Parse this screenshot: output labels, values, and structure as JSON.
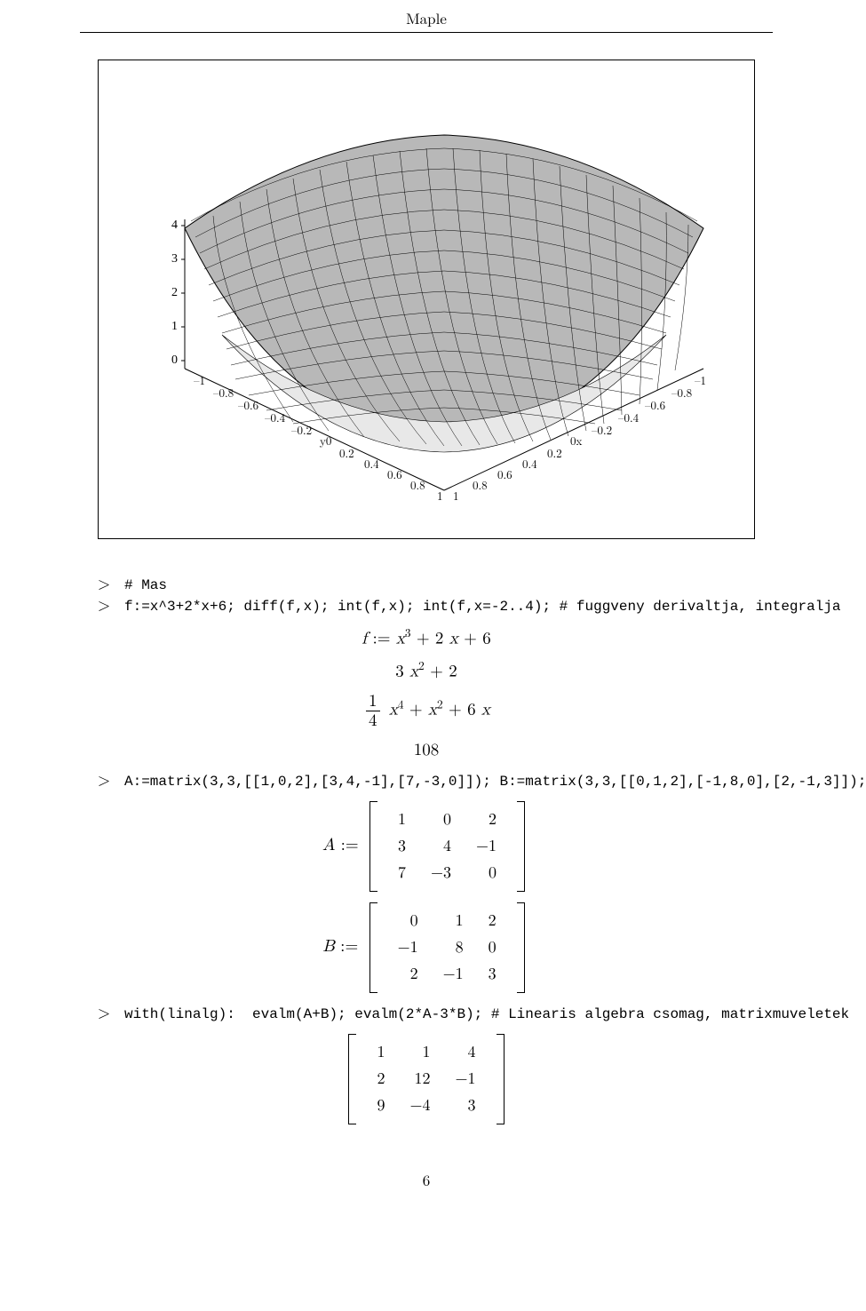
{
  "header": {
    "title": "Maple"
  },
  "plot3d": {
    "type": "surface3d",
    "z_ticks": [
      "0",
      "1",
      "2",
      "3",
      "4"
    ],
    "x_label": "0x",
    "y_label": "y0",
    "xy_ticks_neg": [
      "–1",
      "–0.8",
      "–0.6",
      "–0.4",
      "–0.2"
    ],
    "xy_ticks_pos": [
      "0.2",
      "0.4",
      "0.6",
      "0.8",
      "1"
    ],
    "surface_fill": "#b8b8b8",
    "surface_fill_light": "#e8e8e8",
    "wire_color": "#000000",
    "background": "#ffffff"
  },
  "lines": {
    "l1_prompt": ">",
    "l1_code": "# Mas",
    "l2_prompt": ">",
    "l2_code": "f:=x^3+2*x+6; diff(f,x); int(f,x); int(f,x=-2..4); # fuggveny derivaltja, integralja",
    "l3_prompt": ">",
    "l3_code": "A:=matrix(3,3,[[1,0,2],[3,4,-1],[7,-3,0]]); B:=matrix(3,3,[[0,1,2],[-1,8,0],[2,-1,3]]);",
    "l4_prompt": ">",
    "l4_code": "with(linalg):  evalm(A+B); evalm(2*A-3*B); # Linearis algebra csomag, matrixmuveletek"
  },
  "math": {
    "f_def": "f := x³ + 2 x + 6",
    "deriv": "3 x² + 2",
    "integ_frac_num": "1",
    "integ_frac_den": "4",
    "integ_rest": " x⁴ + x² + 6 x",
    "defint": "108",
    "A_label": "A := ",
    "A": [
      [
        "1",
        "0",
        "2"
      ],
      [
        "3",
        "4",
        "−1"
      ],
      [
        "7",
        "−3",
        "0"
      ]
    ],
    "B_label": "B := ",
    "B": [
      [
        "0",
        "1",
        "2"
      ],
      [
        "−1",
        "8",
        "0"
      ],
      [
        "2",
        "−1",
        "3"
      ]
    ],
    "sum": [
      [
        "1",
        "1",
        "4"
      ],
      [
        "2",
        "12",
        "−1"
      ],
      [
        "9",
        "−4",
        "3"
      ]
    ]
  },
  "page_number": "6"
}
